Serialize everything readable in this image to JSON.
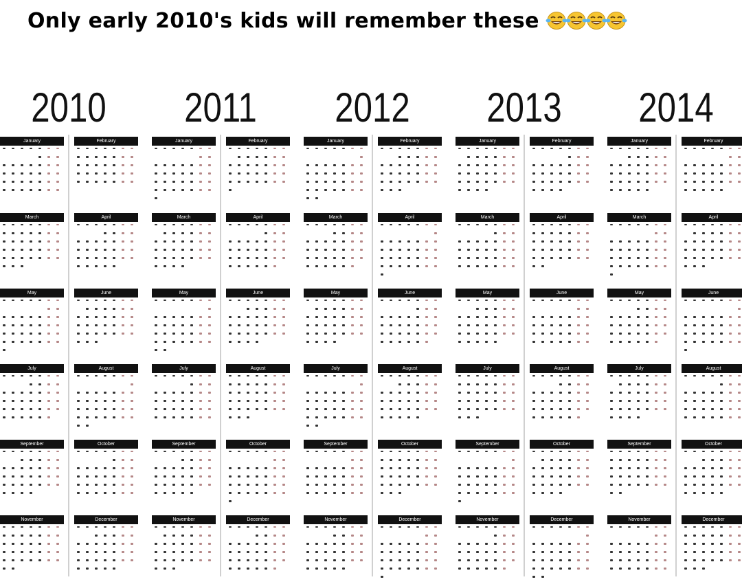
{
  "caption": {
    "text": "Only early 2010's kids will remember these",
    "emoji_icon": "face-with-tears-of-joy-icon",
    "emoji_count": 4
  },
  "years": [
    {
      "year": "2010",
      "months": [
        {
          "name": "January",
          "first_weekday": 4,
          "days": 31
        },
        {
          "name": "February",
          "first_weekday": 0,
          "days": 28
        },
        {
          "name": "March",
          "first_weekday": 0,
          "days": 31
        },
        {
          "name": "April",
          "first_weekday": 3,
          "days": 30
        },
        {
          "name": "May",
          "first_weekday": 5,
          "days": 31
        },
        {
          "name": "June",
          "first_weekday": 1,
          "days": 30
        },
        {
          "name": "July",
          "first_weekday": 3,
          "days": 31
        },
        {
          "name": "August",
          "first_weekday": 6,
          "days": 31
        },
        {
          "name": "September",
          "first_weekday": 2,
          "days": 30
        },
        {
          "name": "October",
          "first_weekday": 4,
          "days": 31
        },
        {
          "name": "November",
          "first_weekday": 0,
          "days": 30
        },
        {
          "name": "December",
          "first_weekday": 2,
          "days": 31
        }
      ]
    },
    {
      "year": "2011",
      "months": [
        {
          "name": "January",
          "first_weekday": 5,
          "days": 31
        },
        {
          "name": "February",
          "first_weekday": 1,
          "days": 28
        },
        {
          "name": "March",
          "first_weekday": 1,
          "days": 31
        },
        {
          "name": "April",
          "first_weekday": 4,
          "days": 30
        },
        {
          "name": "May",
          "first_weekday": 6,
          "days": 31
        },
        {
          "name": "June",
          "first_weekday": 2,
          "days": 30
        },
        {
          "name": "July",
          "first_weekday": 4,
          "days": 31
        },
        {
          "name": "August",
          "first_weekday": 0,
          "days": 31
        },
        {
          "name": "September",
          "first_weekday": 3,
          "days": 30
        },
        {
          "name": "October",
          "first_weekday": 5,
          "days": 31
        },
        {
          "name": "November",
          "first_weekday": 1,
          "days": 30
        },
        {
          "name": "December",
          "first_weekday": 3,
          "days": 31
        }
      ]
    },
    {
      "year": "2012",
      "months": [
        {
          "name": "January",
          "first_weekday": 6,
          "days": 31
        },
        {
          "name": "February",
          "first_weekday": 2,
          "days": 29
        },
        {
          "name": "March",
          "first_weekday": 3,
          "days": 31
        },
        {
          "name": "April",
          "first_weekday": 6,
          "days": 30
        },
        {
          "name": "May",
          "first_weekday": 1,
          "days": 31
        },
        {
          "name": "June",
          "first_weekday": 4,
          "days": 30
        },
        {
          "name": "July",
          "first_weekday": 6,
          "days": 31
        },
        {
          "name": "August",
          "first_weekday": 2,
          "days": 31
        },
        {
          "name": "September",
          "first_weekday": 5,
          "days": 30
        },
        {
          "name": "October",
          "first_weekday": 0,
          "days": 31
        },
        {
          "name": "November",
          "first_weekday": 3,
          "days": 30
        },
        {
          "name": "December",
          "first_weekday": 5,
          "days": 31
        }
      ]
    },
    {
      "year": "2013",
      "months": [
        {
          "name": "January",
          "first_weekday": 1,
          "days": 31
        },
        {
          "name": "February",
          "first_weekday": 4,
          "days": 28
        },
        {
          "name": "March",
          "first_weekday": 4,
          "days": 31
        },
        {
          "name": "April",
          "first_weekday": 0,
          "days": 30
        },
        {
          "name": "May",
          "first_weekday": 2,
          "days": 31
        },
        {
          "name": "June",
          "first_weekday": 5,
          "days": 30
        },
        {
          "name": "July",
          "first_weekday": 0,
          "days": 31
        },
        {
          "name": "August",
          "first_weekday": 3,
          "days": 31
        },
        {
          "name": "September",
          "first_weekday": 6,
          "days": 30
        },
        {
          "name": "October",
          "first_weekday": 1,
          "days": 31
        },
        {
          "name": "November",
          "first_weekday": 4,
          "days": 30
        },
        {
          "name": "December",
          "first_weekday": 6,
          "days": 31
        }
      ]
    },
    {
      "year": "2014",
      "months": [
        {
          "name": "January",
          "first_weekday": 2,
          "days": 31
        },
        {
          "name": "February",
          "first_weekday": 5,
          "days": 28
        },
        {
          "name": "March",
          "first_weekday": 5,
          "days": 31
        },
        {
          "name": "April",
          "first_weekday": 1,
          "days": 30
        },
        {
          "name": "May",
          "first_weekday": 3,
          "days": 31
        },
        {
          "name": "June",
          "first_weekday": 6,
          "days": 30
        },
        {
          "name": "July",
          "first_weekday": 1,
          "days": 31
        },
        {
          "name": "August",
          "first_weekday": 4,
          "days": 31
        },
        {
          "name": "September",
          "first_weekday": 0,
          "days": 30
        },
        {
          "name": "October",
          "first_weekday": 2,
          "days": 31
        },
        {
          "name": "November",
          "first_weekday": 5,
          "days": 30
        },
        {
          "name": "December",
          "first_weekday": 0,
          "days": 31
        }
      ]
    }
  ],
  "colors": {
    "month_bar": "#111111",
    "weekday_dot": "#333333",
    "weekend_dot": "#b58787",
    "separator": "#d0d0d0"
  }
}
